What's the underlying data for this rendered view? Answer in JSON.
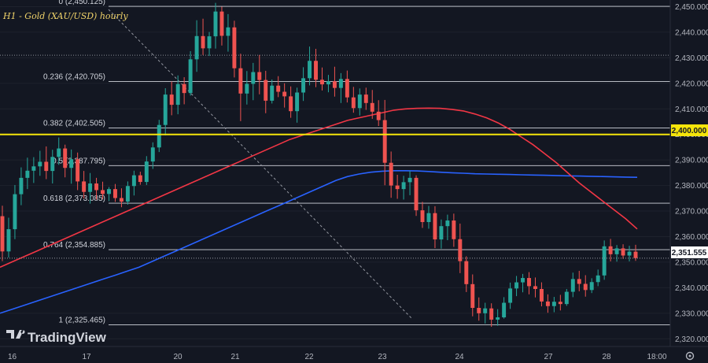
{
  "chart_data": {
    "type": "candlestick",
    "title": "H1 - Gold (XAU/USD) hourly",
    "ylim": [
      2317,
      2452
    ],
    "y_ticks": [
      "2,450.000",
      "2,440.000",
      "2,430.000",
      "2,420.000",
      "2,410.000",
      "2,400.000",
      "2,390.000",
      "2,380.000",
      "2,370.000",
      "2,360.000",
      "2,350.000",
      "2,340.000",
      "2,330.000",
      "2,320.000"
    ],
    "y_tick_values": [
      2450,
      2440,
      2430,
      2420,
      2410,
      2400,
      2390,
      2380,
      2370,
      2360,
      2350,
      2340,
      2330,
      2320
    ],
    "x_tick_labels": [
      "16",
      "17",
      "20",
      "21",
      "22",
      "23",
      "24",
      "27",
      "28",
      "18:00"
    ],
    "colors": {
      "up": "#26a69a",
      "down": "#ef5350",
      "ma_fast": "#f23645",
      "ma_slow": "#2962ff",
      "level": "#f5e50a",
      "fib": "#d1d4dc",
      "price_tag": "#131722"
    },
    "fib_levels": [
      {
        "label": "0 (2,450.125)",
        "value": 2450.125
      },
      {
        "label": "0.236 (2,420.705)",
        "value": 2420.705
      },
      {
        "label": "0.382 (2,402.505)",
        "value": 2402.505
      },
      {
        "label": "0.5 (2,387.795)",
        "value": 2387.795
      },
      {
        "label": "0.618 (2,373.085)",
        "value": 2373.085
      },
      {
        "label": "0.764 (2,354.885)",
        "value": 2354.885
      },
      {
        "label": "1 (2,325.465)",
        "value": 2325.465
      }
    ],
    "horizontal_level": {
      "label": "2,400.000",
      "value": 2400.0
    },
    "dotted_level": {
      "value": 2431.0
    },
    "last_price": {
      "label": "2,351.555",
      "value": 2351.555
    },
    "ohlc": [
      [
        2368.0,
        2372.1,
        2350.4,
        2354.2
      ],
      [
        2354.2,
        2367.4,
        2351.8,
        2362.9
      ],
      [
        2362.9,
        2380.2,
        2359.0,
        2376.6
      ],
      [
        2376.6,
        2387.1,
        2372.3,
        2383.0
      ],
      [
        2383.0,
        2390.9,
        2378.6,
        2385.8
      ],
      [
        2385.8,
        2391.1,
        2381.0,
        2387.5
      ],
      [
        2387.5,
        2393.6,
        2383.8,
        2389.3
      ],
      [
        2389.3,
        2395.3,
        2382.5,
        2385.7
      ],
      [
        2385.7,
        2394.0,
        2380.8,
        2391.2
      ],
      [
        2391.2,
        2398.8,
        2388.1,
        2394.5
      ],
      [
        2394.5,
        2396.0,
        2383.2,
        2386.9
      ],
      [
        2386.9,
        2394.1,
        2380.7,
        2390.3
      ],
      [
        2390.3,
        2392.9,
        2378.2,
        2381.6
      ],
      [
        2381.6,
        2385.7,
        2374.9,
        2377.5
      ],
      [
        2377.5,
        2384.9,
        2372.9,
        2380.8
      ],
      [
        2380.8,
        2383.0,
        2374.5,
        2378.2
      ],
      [
        2378.2,
        2381.5,
        2374.6,
        2376.7
      ],
      [
        2376.7,
        2379.4,
        2373.9,
        2378.6
      ],
      [
        2378.6,
        2380.6,
        2373.6,
        2375.1
      ],
      [
        2375.1,
        2378.9,
        2371.5,
        2373.7
      ],
      [
        2373.7,
        2381.6,
        2372.5,
        2379.8
      ],
      [
        2379.8,
        2385.8,
        2376.1,
        2384.0
      ],
      [
        2384.0,
        2385.4,
        2380.3,
        2381.4
      ],
      [
        2381.4,
        2391.5,
        2380.2,
        2389.4
      ],
      [
        2389.4,
        2396.9,
        2386.5,
        2394.9
      ],
      [
        2394.9,
        2405.7,
        2393.1,
        2403.7
      ],
      [
        2403.7,
        2418.1,
        2399.6,
        2415.6
      ],
      [
        2415.6,
        2420.7,
        2407.5,
        2411.6
      ],
      [
        2411.6,
        2423.1,
        2407.9,
        2419.7
      ],
      [
        2419.7,
        2422.4,
        2411.8,
        2416.2
      ],
      [
        2416.2,
        2432.6,
        2415.2,
        2429.4
      ],
      [
        2429.4,
        2444.7,
        2424.5,
        2438.5
      ],
      [
        2438.5,
        2445.3,
        2431.1,
        2433.7
      ],
      [
        2433.7,
        2440.1,
        2430.7,
        2438.4
      ],
      [
        2438.4,
        2451.5,
        2433.6,
        2448.1
      ],
      [
        2448.1,
        2450.0,
        2434.8,
        2438.6
      ],
      [
        2438.6,
        2447.1,
        2432.4,
        2441.9
      ],
      [
        2441.9,
        2444.5,
        2422.3,
        2425.9
      ],
      [
        2425.9,
        2431.6,
        2405.2,
        2416.0
      ],
      [
        2416.0,
        2424.8,
        2411.7,
        2419.8
      ],
      [
        2419.8,
        2428.0,
        2413.4,
        2424.4
      ],
      [
        2424.4,
        2431.1,
        2415.7,
        2421.3
      ],
      [
        2421.3,
        2424.9,
        2408.3,
        2413.2
      ],
      [
        2413.2,
        2421.5,
        2412.1,
        2419.1
      ],
      [
        2419.1,
        2422.8,
        2414.6,
        2416.7
      ],
      [
        2416.7,
        2420.0,
        2410.5,
        2414.9
      ],
      [
        2414.9,
        2418.8,
        2406.5,
        2409.1
      ],
      [
        2409.1,
        2418.3,
        2404.6,
        2416.4
      ],
      [
        2416.4,
        2426.3,
        2413.1,
        2422.0
      ],
      [
        2422.0,
        2434.4,
        2419.2,
        2428.8
      ],
      [
        2428.8,
        2433.5,
        2418.5,
        2421.4
      ],
      [
        2421.4,
        2426.2,
        2417.2,
        2419.6
      ],
      [
        2419.6,
        2423.3,
        2416.5,
        2420.8
      ],
      [
        2420.8,
        2426.5,
        2414.8,
        2418.2
      ],
      [
        2418.2,
        2424.0,
        2412.3,
        2421.7
      ],
      [
        2421.7,
        2425.0,
        2412.5,
        2414.5
      ],
      [
        2414.5,
        2418.6,
        2408.5,
        2410.3
      ],
      [
        2410.3,
        2418.0,
        2407.4,
        2415.6
      ],
      [
        2415.6,
        2418.3,
        2409.6,
        2412.3
      ],
      [
        2412.3,
        2417.4,
        2406.1,
        2408.9
      ],
      [
        2408.9,
        2413.4,
        2403.3,
        2405.6
      ],
      [
        2405.6,
        2413.5,
        2380.1,
        2388.9
      ],
      [
        2388.9,
        2393.3,
        2375.2,
        2380.0
      ],
      [
        2380.0,
        2384.2,
        2374.8,
        2378.6
      ],
      [
        2378.6,
        2383.8,
        2374.5,
        2381.3
      ],
      [
        2381.3,
        2385.8,
        2376.2,
        2383.0
      ],
      [
        2383.0,
        2384.0,
        2368.1,
        2370.3
      ],
      [
        2370.3,
        2373.6,
        2363.4,
        2365.7
      ],
      [
        2365.7,
        2372.0,
        2363.1,
        2369.2
      ],
      [
        2369.2,
        2371.9,
        2355.5,
        2358.9
      ],
      [
        2358.9,
        2366.7,
        2355.3,
        2364.1
      ],
      [
        2364.1,
        2368.6,
        2358.6,
        2366.3
      ],
      [
        2366.3,
        2369.0,
        2356.0,
        2359.0
      ],
      [
        2359.0,
        2365.1,
        2345.7,
        2350.4
      ],
      [
        2350.4,
        2352.3,
        2338.3,
        2341.4
      ],
      [
        2341.4,
        2345.2,
        2328.8,
        2332.1
      ],
      [
        2332.1,
        2336.2,
        2327.1,
        2330.0
      ],
      [
        2330.0,
        2334.1,
        2326.0,
        2331.9
      ],
      [
        2331.9,
        2333.9,
        2324.7,
        2327.5
      ],
      [
        2327.5,
        2331.6,
        2325.1,
        2328.4
      ],
      [
        2328.4,
        2336.3,
        2327.9,
        2334.1
      ],
      [
        2334.1,
        2342.0,
        2331.7,
        2339.7
      ],
      [
        2339.7,
        2344.6,
        2336.7,
        2342.1
      ],
      [
        2342.1,
        2345.4,
        2338.2,
        2343.8
      ],
      [
        2343.8,
        2346.1,
        2337.4,
        2340.6
      ],
      [
        2340.6,
        2344.0,
        2336.2,
        2339.5
      ],
      [
        2339.5,
        2342.1,
        2332.7,
        2334.6
      ],
      [
        2334.6,
        2337.4,
        2330.2,
        2332.8
      ],
      [
        2332.8,
        2336.4,
        2330.4,
        2334.5
      ],
      [
        2334.5,
        2337.2,
        2331.1,
        2333.6
      ],
      [
        2333.6,
        2339.5,
        2332.9,
        2338.4
      ],
      [
        2338.4,
        2345.9,
        2336.3,
        2343.4
      ],
      [
        2343.4,
        2346.6,
        2338.6,
        2341.5
      ],
      [
        2341.5,
        2344.9,
        2336.5,
        2339.1
      ],
      [
        2339.1,
        2343.7,
        2337.9,
        2342.2
      ],
      [
        2342.2,
        2347.1,
        2340.6,
        2344.8
      ],
      [
        2344.8,
        2358.5,
        2343.1,
        2356.2
      ],
      [
        2356.2,
        2359.1,
        2350.3,
        2353.1
      ],
      [
        2353.1,
        2356.7,
        2350.2,
        2355.4
      ],
      [
        2355.4,
        2357.0,
        2351.3,
        2352.6
      ],
      [
        2352.6,
        2356.4,
        2350.3,
        2354.1
      ],
      [
        2354.1,
        2356.8,
        2350.5,
        2351.6
      ]
    ],
    "ma_fast": [
      2348,
      2350,
      2352,
      2354,
      2356,
      2358,
      2360,
      2362,
      2364,
      2366,
      2368,
      2370,
      2372,
      2374,
      2376,
      2378,
      2380,
      2382,
      2384,
      2386,
      2388,
      2390,
      2392,
      2394,
      2396,
      2398,
      2399.5,
      2401,
      2402.5,
      2404,
      2405.5,
      2406.5,
      2407.5,
      2408.5,
      2409.5,
      2410,
      2410.2,
      2410.3,
      2410.2,
      2409.8,
      2409.2,
      2408,
      2406.5,
      2404.5,
      2402,
      2399,
      2396,
      2392.5,
      2389,
      2385,
      2381,
      2377.5,
      2374,
      2370.5,
      2367,
      2363
    ],
    "ma_slow": [
      2330,
      2331.5,
      2333,
      2334.5,
      2336,
      2337.5,
      2339,
      2340.5,
      2342,
      2343.5,
      2345,
      2346.5,
      2348,
      2350,
      2352,
      2354,
      2356,
      2358,
      2360,
      2362,
      2364,
      2366,
      2368,
      2370,
      2372,
      2374,
      2376,
      2378,
      2380,
      2382,
      2383.5,
      2384.5,
      2385.2,
      2385.6,
      2385.8,
      2385.8,
      2385.7,
      2385.5,
      2385.2,
      2385,
      2384.8,
      2384.6,
      2384.5,
      2384.4,
      2384.3,
      2384.2,
      2384.1,
      2384,
      2383.9,
      2383.8,
      2383.7,
      2383.6,
      2383.5,
      2383.4,
      2383.3,
      2383.2
    ]
  },
  "logo": {
    "text": "TradingView"
  }
}
